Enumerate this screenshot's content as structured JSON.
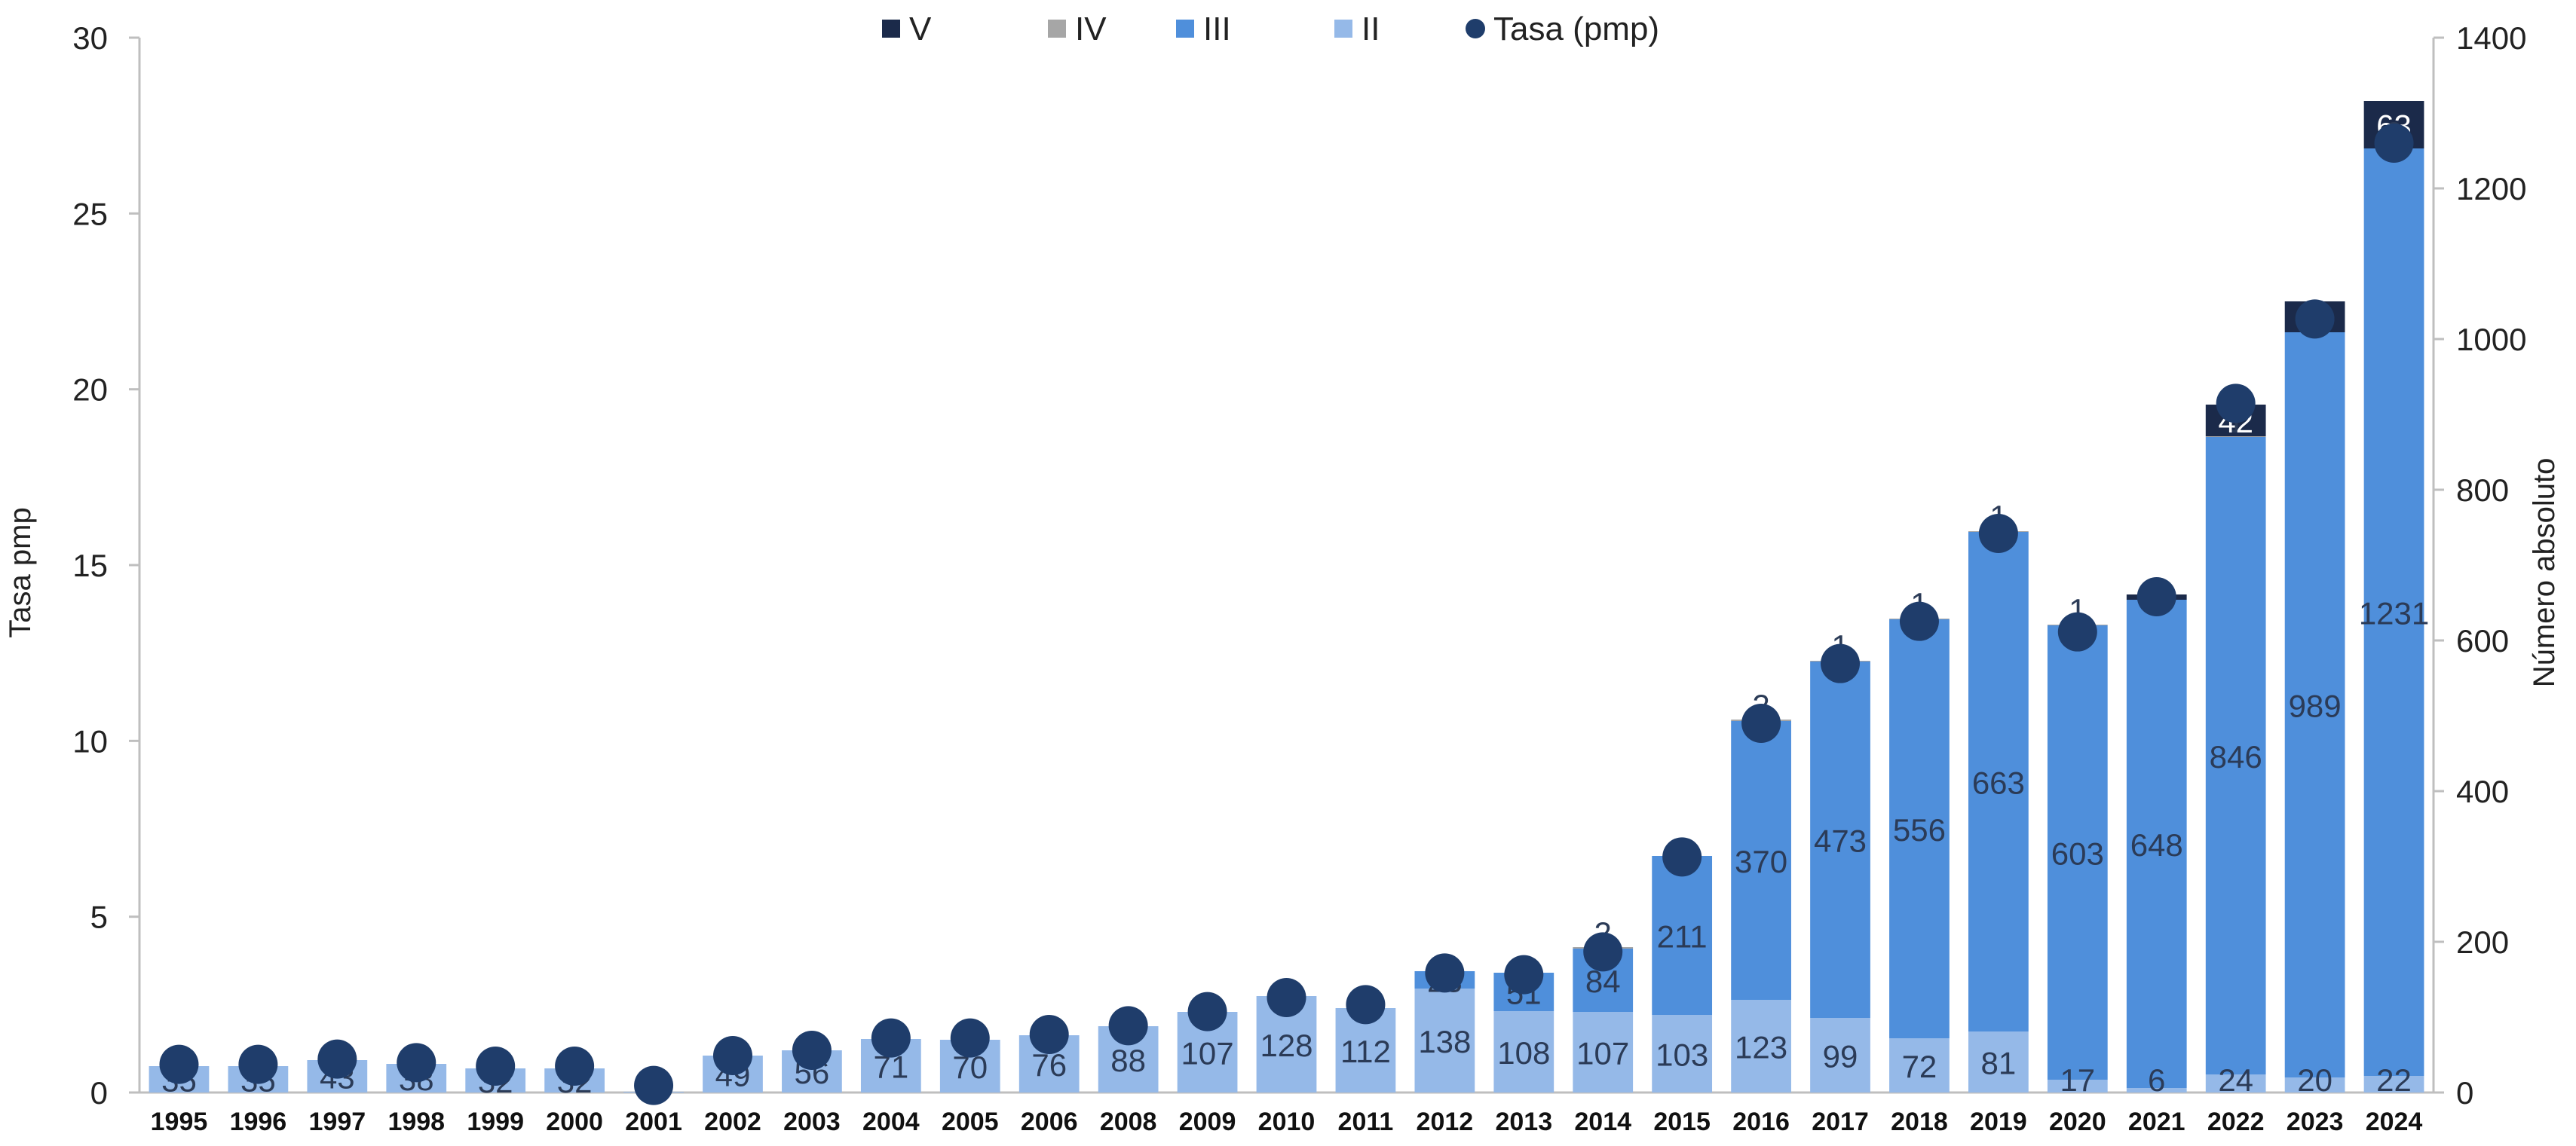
{
  "chart_data": {
    "type": "bar",
    "stacked": true,
    "title": "",
    "ylabel_left": "Tasa pmp",
    "ylabel_right": "Número absoluto",
    "ylim_left": [
      0,
      30
    ],
    "ylim_right": [
      0,
      1400
    ],
    "yticks_left": [
      "0",
      "5",
      "10",
      "15",
      "20",
      "25",
      "30"
    ],
    "yticks_right": [
      "0",
      "200",
      "400",
      "600",
      "800",
      "1000",
      "1200",
      "1400"
    ],
    "grid": false,
    "legend_position": "top",
    "legend": [
      {
        "label": "V",
        "color": "#1b2a4a",
        "shape": "square"
      },
      {
        "label": "IV",
        "color": "#a6a6a6",
        "shape": "square"
      },
      {
        "label": "III",
        "color": "#4f8fdb",
        "shape": "square"
      },
      {
        "label": "II",
        "color": "#95b9e8",
        "shape": "square"
      },
      {
        "label": "Tasa (pmp)",
        "color": "#1f3d6b",
        "shape": "circle"
      }
    ],
    "categories": [
      "1995",
      "1996",
      "1997",
      "1998",
      "1999",
      "2000",
      "2001",
      "2002",
      "2003",
      "2004",
      "2005",
      "2006",
      "2008",
      "2009",
      "2010",
      "2011",
      "2012",
      "2013",
      "2014",
      "2015",
      "2016",
      "2017",
      "2018",
      "2019",
      "2020",
      "2021",
      "2022",
      "2023",
      "2024"
    ],
    "series": [
      {
        "name": "II",
        "axis": "right",
        "color": "#95b9e8",
        "values": [
          35,
          35,
          43,
          38,
          32,
          32,
          1,
          49,
          56,
          71,
          70,
          76,
          88,
          107,
          128,
          112,
          138,
          108,
          107,
          103,
          123,
          99,
          72,
          81,
          17,
          6,
          24,
          20,
          22
        ],
        "labels": [
          "35",
          "35",
          "43",
          "38",
          "32",
          "32",
          "1",
          "49",
          "56",
          "71",
          "70",
          "76",
          "88",
          "107",
          "128",
          "112",
          "138",
          "108",
          "107",
          "103",
          "123",
          "99",
          "72",
          "81",
          "17",
          "6",
          "24",
          "20",
          "22"
        ]
      },
      {
        "name": "III",
        "axis": "right",
        "color": "#4f8fdb",
        "values": [
          0,
          0,
          0,
          0,
          0,
          0,
          0,
          0,
          0,
          0,
          0,
          0,
          0,
          0,
          0,
          0,
          23,
          51,
          84,
          211,
          370,
          473,
          556,
          663,
          603,
          648,
          846,
          989,
          1231
        ],
        "labels": [
          "",
          "",
          "",
          "",
          "",
          "",
          "",
          "",
          "",
          "",
          "",
          "",
          "",
          "",
          "",
          "",
          "23",
          "51",
          "84",
          "211",
          "370",
          "473",
          "556",
          "663",
          "603",
          "648",
          "846",
          "989",
          "1231"
        ]
      },
      {
        "name": "IV",
        "axis": "right",
        "color": "#a6a6a6",
        "values": [
          0,
          0,
          0,
          0,
          0,
          0,
          0,
          0,
          0,
          0,
          0,
          0,
          0,
          0,
          0,
          0,
          0,
          0,
          2,
          0,
          2,
          1,
          1,
          1,
          1,
          0,
          1,
          0,
          0
        ],
        "labels": [
          "",
          "",
          "",
          "",
          "",
          "",
          "",
          "",
          "",
          "",
          "",
          "",
          "",
          "",
          "",
          "",
          "",
          "",
          "2",
          "",
          "2",
          "1",
          "1",
          "1",
          "1",
          "",
          "1",
          "0",
          "0"
        ]
      },
      {
        "name": "V",
        "axis": "right",
        "color": "#1b2a4a",
        "values": [
          0,
          0,
          0,
          0,
          0,
          0,
          0,
          0,
          0,
          0,
          0,
          0,
          0,
          0,
          0,
          0,
          0,
          0,
          0,
          0,
          0,
          0,
          0,
          0,
          0,
          7,
          42,
          41,
          63
        ],
        "labels": [
          "",
          "",
          "",
          "",
          "",
          "",
          "",
          "",
          "",
          "",
          "",
          "",
          "",
          "",
          "",
          "",
          "",
          "",
          "",
          "",
          "",
          "",
          "",
          "",
          "",
          "7",
          "42",
          "41",
          "63"
        ]
      }
    ],
    "line": {
      "name": "Tasa (pmp)",
      "axis": "left",
      "color": "#1f3d6b",
      "values": [
        0.8,
        0.8,
        0.95,
        0.85,
        0.75,
        0.75,
        0.2,
        1.05,
        1.2,
        1.55,
        1.55,
        1.65,
        1.9,
        2.3,
        2.7,
        2.5,
        3.4,
        3.35,
        4.0,
        6.7,
        10.5,
        12.2,
        13.4,
        15.9,
        13.1,
        14.1,
        19.6,
        22.0,
        27.0
      ]
    }
  }
}
